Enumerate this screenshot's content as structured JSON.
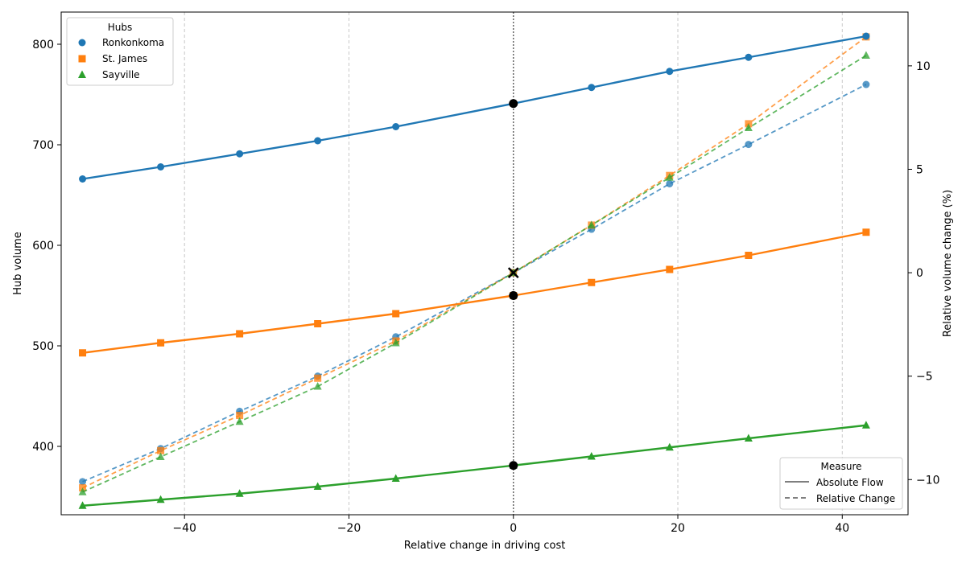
{
  "chart_data": {
    "type": "line",
    "xlabel": "Relative change in driving cost",
    "ylabel": "Hub volume",
    "y2label": "Relative volume change (%)",
    "xlim": [
      -55,
      48
    ],
    "ylim": [
      332,
      832
    ],
    "y2lim": [
      -11.7,
      12.6
    ],
    "x_ticks": [
      -40,
      -20,
      0,
      20,
      40
    ],
    "y_ticks": [
      400,
      500,
      600,
      700,
      800
    ],
    "y2_ticks": [
      -10,
      -5,
      0,
      5,
      10
    ],
    "tick_labels": {
      "x": [
        "−40",
        "−20",
        "0",
        "20",
        "40"
      ],
      "y": [
        "400",
        "500",
        "600",
        "700",
        "800"
      ],
      "y2": [
        "−10",
        "−5",
        "0",
        "5",
        "10"
      ]
    },
    "grid": "x-dashed",
    "x": [
      -52.4,
      -42.9,
      -33.3,
      -23.8,
      -14.3,
      0,
      9.5,
      19.0,
      28.6,
      42.9
    ],
    "series": [
      {
        "name": "Ronkonkoma",
        "marker": "circle",
        "color": "#1f77b4",
        "absolute": [
          666,
          678,
          691,
          704,
          718,
          741,
          757,
          773,
          787,
          808
        ],
        "relative": [
          -10.1,
          -8.5,
          -6.7,
          -5.0,
          -3.1,
          0,
          2.1,
          4.3,
          6.2,
          9.1
        ]
      },
      {
        "name": "St. James",
        "marker": "square",
        "color": "#ff7f0e",
        "absolute": [
          493,
          503,
          512,
          522,
          532,
          550,
          563,
          576,
          590,
          613
        ],
        "relative": [
          -10.4,
          -8.6,
          -6.9,
          -5.1,
          -3.3,
          0,
          2.3,
          4.7,
          7.2,
          11.4
        ]
      },
      {
        "name": "Sayville",
        "marker": "triangle",
        "color": "#2ca02c",
        "absolute": [
          341,
          347,
          353,
          360,
          368,
          381,
          390,
          399,
          408,
          421
        ],
        "relative": [
          -10.6,
          -8.9,
          -7.2,
          -5.5,
          -3.4,
          0,
          2.3,
          4.6,
          7.0,
          10.5
        ]
      }
    ],
    "reference_line_x": 0,
    "reference_marks": {
      "absolute_points": [
        741,
        550,
        381
      ],
      "relative_cross": 0
    },
    "legends": {
      "hubs": {
        "title": "Hubs",
        "placement": "top-left",
        "entries": [
          "Ronkonkoma",
          "St. James",
          "Sayville"
        ]
      },
      "measure": {
        "title": "Measure",
        "placement": "bottom-right",
        "entries": [
          "Absolute Flow",
          "Relative Change"
        ]
      }
    }
  }
}
